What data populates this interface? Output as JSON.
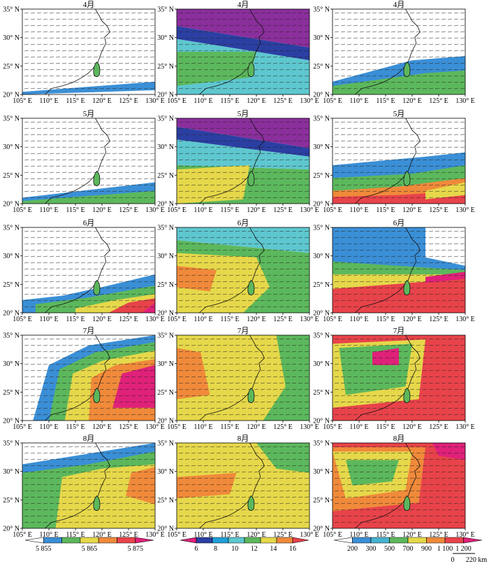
{
  "months": [
    "4月",
    "5月",
    "6月",
    "7月",
    "8月"
  ],
  "lat_ticks": [
    "20° N",
    "25° N",
    "30° N",
    "35° N"
  ],
  "lon_ticks": [
    "105° E",
    "110° E",
    "115° E",
    "120° E",
    "125° E",
    "130° E"
  ],
  "legends": [
    {
      "labels": [
        "5 855",
        "5 865",
        "5 875"
      ],
      "colors": [
        "#ffffff",
        "#3a8fd6",
        "#5cb85c",
        "#e6d84a",
        "#f08a3a",
        "#e8434a",
        "#e0217a"
      ]
    },
    {
      "labels": [
        "6",
        "8",
        "10",
        "12",
        "14",
        "16"
      ],
      "colors": [
        "#e0217a",
        "#2b3fa3",
        "#1f9fd8",
        "#5ec7cf",
        "#5cb85c",
        "#e6d84a",
        "#f08a3a",
        "#e8434a"
      ]
    },
    {
      "labels": [
        "200",
        "300",
        "500",
        "700",
        "900",
        "1 100",
        "1 200"
      ],
      "colors": [
        "#ffffff",
        "#3a8fd6",
        "#46b3cf",
        "#5cb85c",
        "#e6d84a",
        "#f08a3a",
        "#e8434a",
        "#e0217a"
      ]
    }
  ],
  "scale_bar": {
    "zero": "0",
    "distance": "220 km"
  },
  "palette": {
    "white": "#ffffff",
    "blue": "#3a8fd6",
    "cyan": "#46b3cf",
    "teal": "#5ec7cf",
    "dark_blue": "#2b3fa3",
    "purple": "#8b2f9c",
    "green": "#5cb85c",
    "yellow": "#e6d84a",
    "orange": "#f08a3a",
    "red": "#e8434a",
    "magenta": "#e0217a"
  }
}
